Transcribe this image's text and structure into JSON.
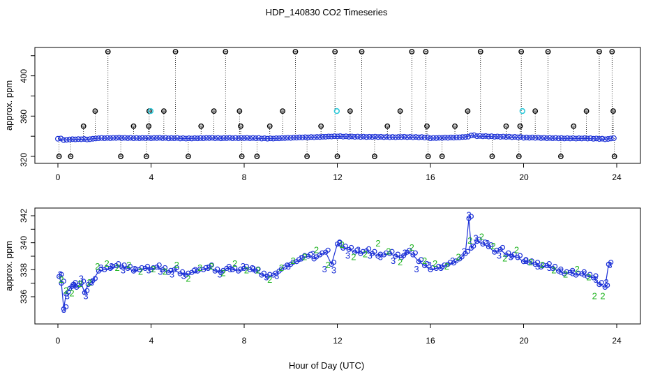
{
  "title": "HDP_140830  CO2 Timeseries",
  "xlabel": "Hour of Day (UTC)",
  "colors": {
    "main": "#1a2fd6",
    "flag": "#000000",
    "cyan": "#2ec9d9",
    "green": "#22b522",
    "blue": "#1a2fd6"
  },
  "chart_data": [
    {
      "type": "scatter",
      "ylabel": "approx. ppm",
      "xlim": [
        0,
        24
      ],
      "ylim": [
        320,
        424
      ],
      "xticks": [
        "0",
        "4",
        "8",
        "12",
        "16",
        "20",
        "24"
      ],
      "yticks": [
        "320",
        "360",
        "400"
      ],
      "series": [
        {
          "role": "baseline",
          "x": [
            0.0,
            0.25,
            0.5,
            0.75,
            1.0,
            1.25,
            1.5,
            1.75,
            2.0,
            2.25,
            2.5,
            2.75,
            3.0,
            3.25,
            3.5,
            3.75,
            4.0,
            4.25,
            4.5,
            4.75,
            5.0,
            5.25,
            5.5,
            5.75,
            6.0,
            6.25,
            6.5,
            6.75,
            7.0,
            7.25,
            7.5,
            7.75,
            8.0,
            8.25,
            8.5,
            8.75,
            9.0,
            9.25,
            9.5,
            9.75,
            10.0,
            10.25,
            10.5,
            10.75,
            11.0,
            11.25,
            11.5,
            11.75,
            12.0,
            12.25,
            12.5,
            12.75,
            13.0,
            13.25,
            13.5,
            13.75,
            14.0,
            14.25,
            14.5,
            14.75,
            15.0,
            15.25,
            15.5,
            15.75,
            16.0,
            16.25,
            16.5,
            16.75,
            17.0,
            17.25,
            17.5,
            17.75,
            18.0,
            18.25,
            18.5,
            18.75,
            19.0,
            19.25,
            19.5,
            19.75,
            20.0,
            20.25,
            20.5,
            20.75,
            21.0,
            21.25,
            21.5,
            21.75,
            22.0,
            22.25,
            22.5,
            22.75,
            23.0,
            23.25,
            23.5,
            23.75
          ],
          "y": [
            337.5,
            336.2,
            336.8,
            336.9,
            337.0,
            336.8,
            337.5,
            338.0,
            338.0,
            338.1,
            338.3,
            338.2,
            338.1,
            338.0,
            338.0,
            338.1,
            338.0,
            338.2,
            338.1,
            337.9,
            338.0,
            337.8,
            337.7,
            337.8,
            337.9,
            338.0,
            338.2,
            338.0,
            337.9,
            338.1,
            338.0,
            338.0,
            338.1,
            338.0,
            338.0,
            337.7,
            337.6,
            337.7,
            337.9,
            338.2,
            338.3,
            338.6,
            338.8,
            338.9,
            339.0,
            339.2,
            339.5,
            339.7,
            339.8,
            339.6,
            339.5,
            339.4,
            339.3,
            339.2,
            339.3,
            339.2,
            339.1,
            339.0,
            339.0,
            339.2,
            339.1,
            339.0,
            338.9,
            338.7,
            338.0,
            338.2,
            338.4,
            338.5,
            338.6,
            338.9,
            339.3,
            340.8,
            340.0,
            339.9,
            339.7,
            339.5,
            339.4,
            339.3,
            339.1,
            339.0,
            338.5,
            338.5,
            338.4,
            338.2,
            338.0,
            338.0,
            337.9,
            337.8,
            337.8,
            337.7,
            337.8,
            337.7,
            337.5,
            337.3,
            337.0,
            337.8
          ]
        },
        {
          "role": "flagged",
          "x": [
            0.05,
            0.55,
            1.1,
            1.6,
            2.15,
            2.7,
            3.25,
            3.8,
            3.9,
            3.92,
            4.55,
            5.05,
            5.6,
            6.15,
            6.7,
            7.2,
            7.8,
            7.85,
            7.9,
            8.55,
            9.1,
            9.65,
            10.2,
            10.7,
            11.3,
            11.9,
            12.0,
            12.55,
            13.05,
            13.6,
            14.15,
            14.7,
            15.2,
            15.8,
            15.85,
            15.9,
            16.5,
            17.05,
            17.6,
            18.15,
            18.65,
            19.25,
            19.8,
            19.85,
            19.9,
            20.5,
            21.05,
            21.6,
            22.15,
            22.7,
            23.25,
            23.8,
            23.85,
            23.9
          ],
          "y": [
            320,
            320,
            350,
            365,
            424,
            320,
            350,
            320,
            350,
            365,
            365,
            424,
            320,
            350,
            365,
            424,
            365,
            350,
            320,
            320,
            350,
            365,
            424,
            320,
            350,
            424,
            320,
            365,
            424,
            320,
            350,
            365,
            424,
            424,
            350,
            320,
            320,
            350,
            365,
            424,
            320,
            350,
            320,
            350,
            424,
            365,
            424,
            320,
            350,
            365,
            424,
            424,
            365,
            320
          ]
        },
        {
          "role": "cyan",
          "x": [
            3.98,
            11.98,
            19.95
          ],
          "y": [
            365,
            365,
            365
          ]
        }
      ]
    },
    {
      "type": "line",
      "ylabel": "approx. ppm",
      "xlim": [
        0,
        24
      ],
      "ylim": [
        335,
        342.5
      ],
      "xticks": [
        "0",
        "4",
        "8",
        "12",
        "16",
        "20",
        "24"
      ],
      "yticks": [
        "336",
        "338",
        "340",
        "342"
      ],
      "series": [
        {
          "role": "trace",
          "x": [
            0.05,
            0.15,
            0.25,
            0.35,
            0.5,
            0.65,
            0.8,
            1.0,
            1.15,
            1.3,
            1.5,
            1.75,
            2.0,
            2.25,
            2.5,
            2.75,
            3.0,
            3.25,
            3.5,
            3.75,
            4.0,
            4.25,
            4.5,
            4.75,
            5.0,
            5.25,
            5.5,
            5.75,
            6.0,
            6.25,
            6.5,
            6.75,
            7.0,
            7.25,
            7.5,
            7.75,
            8.0,
            8.25,
            8.5,
            8.75,
            9.0,
            9.25,
            9.5,
            9.75,
            10.0,
            10.25,
            10.5,
            10.75,
            11.0,
            11.25,
            11.5,
            11.75,
            12.0,
            12.25,
            12.5,
            12.75,
            13.0,
            13.25,
            13.5,
            13.75,
            14.0,
            14.25,
            14.5,
            14.75,
            15.0,
            15.25,
            15.5,
            15.75,
            16.0,
            16.25,
            16.5,
            16.75,
            17.0,
            17.25,
            17.5,
            17.65,
            17.75,
            18.0,
            18.25,
            18.5,
            18.75,
            19.0,
            19.25,
            19.5,
            19.75,
            20.0,
            20.25,
            20.5,
            20.75,
            21.0,
            21.25,
            21.5,
            21.75,
            22.0,
            22.25,
            22.5,
            22.75,
            23.0,
            23.25,
            23.5,
            23.65
          ],
          "y": [
            337.5,
            337.0,
            335.1,
            336.2,
            336.6,
            336.9,
            336.7,
            337.0,
            336.3,
            336.9,
            337.2,
            337.9,
            338.0,
            338.1,
            338.3,
            338.2,
            338.1,
            337.9,
            338.0,
            338.1,
            338.0,
            338.2,
            338.0,
            337.8,
            338.0,
            337.7,
            337.6,
            337.8,
            337.9,
            338.0,
            338.2,
            337.9,
            337.8,
            338.1,
            338.0,
            337.9,
            338.1,
            338.0,
            337.9,
            337.6,
            337.5,
            337.6,
            337.9,
            338.2,
            338.4,
            338.6,
            338.9,
            339.0,
            338.8,
            339.1,
            339.3,
            338.4,
            339.9,
            339.6,
            339.5,
            339.3,
            339.2,
            339.4,
            339.2,
            339.0,
            339.1,
            339.2,
            339.0,
            338.9,
            339.3,
            339.1,
            338.6,
            338.3,
            338.0,
            338.1,
            338.2,
            338.4,
            338.5,
            338.8,
            339.2,
            341.8,
            339.6,
            340.1,
            339.9,
            339.7,
            339.3,
            339.5,
            339.1,
            339.0,
            338.9,
            338.6,
            338.5,
            338.4,
            338.2,
            338.3,
            338.1,
            337.9,
            337.7,
            337.8,
            337.6,
            337.7,
            337.5,
            337.4,
            336.9,
            336.7,
            338.4
          ]
        },
        {
          "role": "label-3",
          "x": [
            0.1,
            0.25,
            0.4,
            0.7,
            1.0,
            1.2,
            1.45,
            1.85,
            2.3,
            2.8,
            3.3,
            3.9,
            4.4,
            4.9,
            5.4,
            5.9,
            6.45,
            6.95,
            7.4,
            7.95,
            8.4,
            8.95,
            9.4,
            9.9,
            10.45,
            10.95,
            11.45,
            11.85,
            12.1,
            12.45,
            12.9,
            13.4,
            13.85,
            14.4,
            14.9,
            15.4,
            15.95,
            16.45,
            16.95,
            17.45,
            17.65,
            17.95,
            18.45,
            18.95,
            19.45,
            20.1,
            20.6,
            21.1,
            21.6,
            22.1,
            22.6,
            23.1,
            23.55,
            23.7
          ],
          "y": [
            337.6,
            335.0,
            336.0,
            336.8,
            337.3,
            336.0,
            337.0,
            338.1,
            338.2,
            337.9,
            338.0,
            337.9,
            337.8,
            337.6,
            337.5,
            337.9,
            338.1,
            337.6,
            338.0,
            338.2,
            338.0,
            337.4,
            337.5,
            338.2,
            338.8,
            339.1,
            338.0,
            337.9,
            339.9,
            339.0,
            339.4,
            339.0,
            338.9,
            338.6,
            339.2,
            338.0,
            338.3,
            338.1,
            338.6,
            339.3,
            342.0,
            340.3,
            339.9,
            339.0,
            338.9,
            338.6,
            338.2,
            338.1,
            337.8,
            337.7,
            337.6,
            337.2,
            337.0,
            338.3
          ]
        },
        {
          "role": "label-2",
          "x": [
            0.15,
            0.35,
            0.6,
            0.95,
            1.35,
            1.7,
            2.1,
            2.55,
            3.05,
            3.55,
            4.1,
            4.6,
            5.1,
            5.6,
            6.1,
            6.6,
            7.1,
            7.6,
            8.1,
            8.6,
            9.1,
            9.6,
            10.1,
            10.6,
            11.1,
            11.6,
            12.2,
            12.7,
            13.2,
            13.75,
            14.2,
            14.7,
            15.2,
            15.75,
            16.2,
            16.7,
            17.2,
            17.7,
            18.2,
            18.7,
            19.2,
            19.7,
            20.3,
            20.8,
            21.3,
            21.8,
            22.3,
            22.8,
            23.05,
            23.4
          ],
          "y": [
            337.2,
            336.4,
            336.2,
            336.9,
            337.0,
            338.2,
            338.4,
            338.1,
            338.3,
            337.8,
            338.0,
            337.8,
            338.3,
            337.3,
            338.1,
            338.2,
            337.7,
            338.4,
            337.9,
            337.9,
            337.2,
            338.1,
            338.6,
            338.9,
            339.4,
            338.3,
            339.8,
            338.9,
            339.1,
            339.9,
            339.3,
            338.5,
            339.6,
            338.6,
            338.4,
            338.2,
            338.9,
            340.1,
            340.4,
            339.7,
            338.8,
            339.4,
            338.5,
            338.3,
            337.9,
            337.6,
            338.0,
            337.4,
            336.0,
            336.0
          ]
        }
      ]
    }
  ]
}
